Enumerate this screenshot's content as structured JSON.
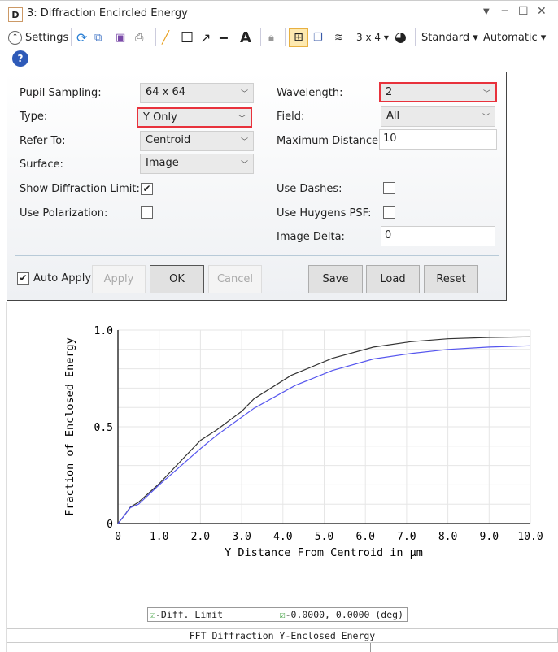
{
  "window": {
    "title": "3: Diffraction Encircled Energy",
    "app_icon_letter": "D"
  },
  "toolbar": {
    "settings_label": "Settings",
    "layout_label": "3 x 4 ▾",
    "standard_label": "Standard ▾",
    "automatic_label": "Automatic ▾"
  },
  "settings": {
    "pupil_sampling": {
      "label": "Pupil Sampling:",
      "value": "64 x 64"
    },
    "type": {
      "label": "Type:",
      "value": "Y Only"
    },
    "refer_to": {
      "label": "Refer To:",
      "value": "Centroid"
    },
    "surface": {
      "label": "Surface:",
      "value": "Image"
    },
    "show_diffraction_limit": {
      "label": "Show Diffraction Limit:",
      "checked": true
    },
    "use_polarization": {
      "label": "Use Polarization:",
      "checked": false
    },
    "wavelength": {
      "label": "Wavelength:",
      "value": "2"
    },
    "field": {
      "label": "Field:",
      "value": "All"
    },
    "maximum_distance": {
      "label": "Maximum Distance:",
      "value": "10"
    },
    "use_dashes": {
      "label": "Use Dashes:",
      "checked": false
    },
    "use_huygens_psf": {
      "label": "Use Huygens PSF:",
      "checked": false
    },
    "image_delta": {
      "label": "Image Delta:",
      "value": "0"
    },
    "auto_apply": {
      "label": "Auto Apply",
      "checked": true
    },
    "buttons": {
      "apply": "Apply",
      "ok": "OK",
      "cancel": "Cancel",
      "save": "Save",
      "load": "Load",
      "reset": "Reset"
    },
    "highlight_color": "#e8323c"
  },
  "chart_data": {
    "type": "line",
    "xlabel": "Y Distance From Centroid in μm",
    "ylabel": "Fraction of Enclosed Energy",
    "xlim": [
      0,
      10
    ],
    "ylim": [
      0,
      1
    ],
    "xticks": [
      "0",
      "1.0",
      "2.0",
      "3.0",
      "4.0",
      "5.0",
      "6.0",
      "7.0",
      "8.0",
      "9.0",
      "10.0"
    ],
    "yticks": [
      "0",
      "0.5",
      "1.0"
    ],
    "grid": true,
    "legend_placement": "bottom",
    "series": [
      {
        "name": "Diff. Limit",
        "color": "#333333",
        "x": [
          0,
          0.15,
          0.3,
          0.5,
          1,
          2,
          2.4,
          3,
          3.3,
          4.2,
          5.2,
          6.2,
          7.1,
          8,
          9,
          10
        ],
        "y": [
          0,
          0.04,
          0.085,
          0.11,
          0.206,
          0.43,
          0.485,
          0.58,
          0.645,
          0.766,
          0.854,
          0.912,
          0.94,
          0.955,
          0.962,
          0.965
        ]
      },
      {
        "name": "0.0000, 0.0000 (deg)",
        "color": "#5555ee",
        "x": [
          0,
          0.15,
          0.3,
          0.5,
          1,
          2,
          2.4,
          3.3,
          4.3,
          5.2,
          6.2,
          7.1,
          8,
          9,
          10
        ],
        "y": [
          0,
          0.04,
          0.082,
          0.1,
          0.2,
          0.387,
          0.457,
          0.596,
          0.714,
          0.791,
          0.851,
          0.879,
          0.9,
          0.912,
          0.919
        ]
      }
    ],
    "legend": [
      "-Diff. Limit",
      "-0.0000, 0.0000 (deg)"
    ],
    "title": "FFT Diffraction Y-Enclosed Energy"
  }
}
